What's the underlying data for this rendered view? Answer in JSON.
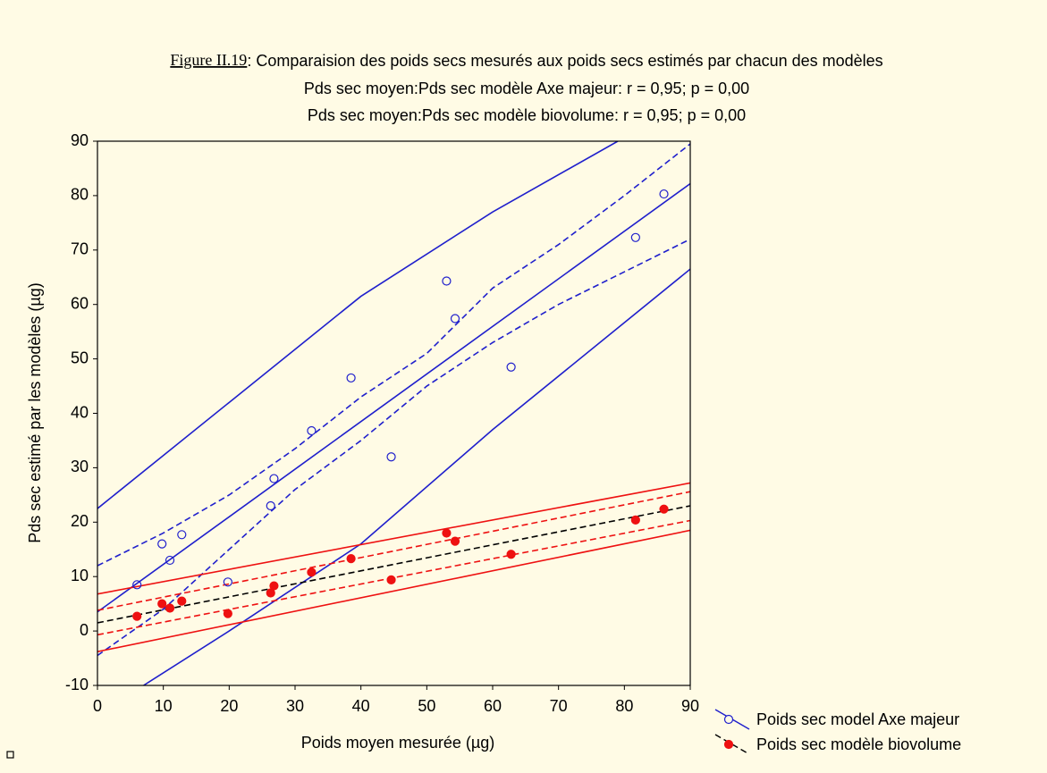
{
  "chart_data": {
    "type": "scatter",
    "figure_label": "Figure II.19",
    "title": ": Comparaision des poids secs mesurés aux poids secs estimés par chacun des modèles",
    "subtitles": [
      "Pds sec moyen:Pds sec modèle Axe majeur: r = 0,95; p = 0,00",
      "Pds sec moyen:Pds sec modèle biovolume: r = 0,95; p = 0,00"
    ],
    "x_label": "Poids  moyen mesurée  (µg)",
    "y_label": "Pds sec estimé par les modèles (µg)",
    "xlim": [
      0,
      90
    ],
    "ylim": [
      -10,
      90
    ],
    "xticks": [
      0,
      10,
      20,
      30,
      40,
      50,
      60,
      70,
      80,
      90
    ],
    "yticks": [
      -10,
      0,
      10,
      20,
      30,
      40,
      50,
      60,
      70,
      80,
      90
    ],
    "series": [
      {
        "name": "Poids sec model Axe majeur",
        "color": "#1f1fcc",
        "marker": "open",
        "line_color": "#1f1fcc",
        "line_dash": false,
        "x": [
          6,
          9.8,
          11,
          12.8,
          19.8,
          26.3,
          26.8,
          32.5,
          38.5,
          44.6,
          53,
          54.3,
          62.8,
          81.7,
          86
        ],
        "values": [
          8.5,
          16,
          13,
          17.7,
          9,
          23,
          28,
          36.8,
          46.5,
          32,
          64.3,
          57.4,
          48.5,
          72.3,
          80.3
        ]
      },
      {
        "name": "Poids sec modèle biovolume",
        "color": "#ee1111",
        "marker": "filled",
        "line_color": "#000000",
        "line_dash": true,
        "x": [
          6,
          9.8,
          11,
          12.8,
          19.8,
          26.3,
          26.8,
          32.5,
          38.5,
          44.6,
          53,
          54.3,
          62.8,
          81.7,
          86
        ],
        "values": [
          2.7,
          5,
          4.2,
          5.5,
          3.2,
          7,
          8.3,
          10.8,
          13.3,
          9.4,
          18,
          16.5,
          14.1,
          20.4,
          22.4
        ]
      }
    ],
    "fits": [
      {
        "color": "#1f1fcc",
        "dash": false,
        "x": [
          0,
          90
        ],
        "values": [
          3.5,
          82.2
        ]
      },
      {
        "color": "#1f1fcc",
        "dash": false,
        "x": [
          0,
          20,
          40,
          60,
          79
        ],
        "values": [
          22.5,
          42,
          61.5,
          77,
          90
        ]
      },
      {
        "color": "#1f1fcc",
        "dash": false,
        "x": [
          7,
          20,
          40,
          60,
          90
        ],
        "values": [
          -10,
          0,
          16,
          37,
          66.5
        ]
      },
      {
        "color": "#1f1fcc",
        "dash": true,
        "x": [
          0,
          10,
          20,
          30,
          40,
          50,
          60,
          70,
          80,
          90
        ],
        "values": [
          12,
          18,
          25,
          33.5,
          43,
          51,
          63,
          71,
          80,
          89.5
        ]
      },
      {
        "color": "#1f1fcc",
        "dash": true,
        "x": [
          0,
          10,
          20,
          30,
          40,
          50,
          60,
          70,
          80,
          90
        ],
        "values": [
          -4.5,
          4,
          15,
          26,
          35,
          45,
          53,
          60,
          66,
          72
        ]
      },
      {
        "color": "#000000",
        "dash": true,
        "x": [
          0,
          90
        ],
        "values": [
          1.5,
          23
        ]
      },
      {
        "color": "#ee1111",
        "dash": false,
        "x": [
          0,
          90
        ],
        "values": [
          6.8,
          27.2
        ]
      },
      {
        "color": "#ee1111",
        "dash": false,
        "x": [
          0,
          90
        ],
        "values": [
          -3.8,
          18.5
        ]
      },
      {
        "color": "#ee1111",
        "dash": true,
        "x": [
          0,
          90
        ],
        "values": [
          3.8,
          25.6
        ]
      },
      {
        "color": "#ee1111",
        "dash": true,
        "x": [
          0,
          90
        ],
        "values": [
          -0.7,
          20.3
        ]
      }
    ]
  }
}
